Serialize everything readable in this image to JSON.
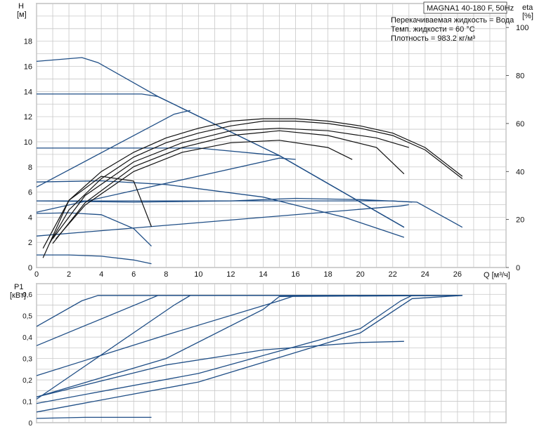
{
  "chart_data": [
    {
      "type": "line",
      "title": "MAGNA1 40-180 F, 50Hz",
      "info_lines": [
        "Перекачиваемая жидкость = Вода",
        "Темп. жидкости = 60 °C",
        "Плотность = 983.2 кг/м³"
      ],
      "ylabel": "H",
      "yunit": "[м]",
      "y2label": "eta",
      "y2unit": "[%]",
      "xlabel": "Q [м³/ч]",
      "xlim": [
        0,
        29
      ],
      "ylim": [
        0,
        21
      ],
      "y2lim": [
        0,
        110
      ],
      "grid": true,
      "x_ticks": [
        0,
        2,
        4,
        6,
        8,
        10,
        12,
        14,
        16,
        18,
        20,
        22,
        24,
        26
      ],
      "y_ticks": [
        0,
        2,
        4,
        6,
        8,
        10,
        12,
        14,
        16,
        18
      ],
      "y2_ticks": [
        0,
        20,
        40,
        60,
        80,
        100
      ],
      "series": [
        {
          "x": [
            0,
            2.8,
            3.8,
            7.5,
            15,
            22.7
          ],
          "y": [
            16.4,
            16.7,
            16.3,
            13.6,
            8.9,
            3.2
          ]
        },
        {
          "x": [
            0,
            6.5,
            7.5,
            15,
            22.7
          ],
          "y": [
            13.8,
            13.8,
            13.6,
            8.9,
            3.2
          ]
        },
        {
          "x": [
            0,
            10,
            15,
            22.7
          ],
          "y": [
            9.5,
            9.5,
            8.9,
            3.2
          ]
        },
        {
          "x": [
            0,
            8.5,
            9.5
          ],
          "y": [
            6.4,
            12.2,
            12.5
          ]
        },
        {
          "x": [
            0,
            15,
            16
          ],
          "y": [
            4.4,
            8.7,
            8.6
          ]
        },
        {
          "x": [
            0,
            22.5,
            23
          ],
          "y": [
            2.5,
            4.9,
            5.0
          ]
        },
        {
          "x": [
            0,
            12,
            22,
            23.2
          ],
          "y": [
            5.3,
            5.3,
            5.3,
            5.2
          ]
        },
        {
          "x": [
            0,
            4,
            8,
            14,
            19,
            22.7
          ],
          "y": [
            6.8,
            6.9,
            6.6,
            5.6,
            4.0,
            2.4
          ]
        },
        {
          "x": [
            0,
            2,
            4,
            6,
            7.1
          ],
          "y": [
            4.3,
            4.35,
            4.2,
            3.1,
            1.7
          ]
        },
        {
          "x": [
            0,
            2,
            4,
            6,
            7.1
          ],
          "y": [
            1.0,
            1.0,
            0.9,
            0.6,
            0.3
          ]
        },
        {
          "x": [
            0,
            6,
            12,
            16,
            20,
            23.5,
            26.3
          ],
          "y": [
            5.3,
            5.2,
            5.3,
            5.5,
            5.4,
            5.2,
            3.2
          ]
        }
      ],
      "efficiency_series": [
        {
          "x": [
            0.4,
            2,
            4,
            6,
            8,
            10,
            12,
            14,
            16,
            18,
            20,
            22,
            24,
            26.3
          ],
          "y": [
            8,
            28,
            40,
            48,
            54,
            58,
            61,
            62,
            62,
            61,
            59,
            56,
            50,
            38
          ]
        },
        {
          "x": [
            0.8,
            2,
            4,
            6,
            8,
            10,
            12,
            14,
            16,
            18,
            20,
            22,
            24,
            26.3
          ],
          "y": [
            10,
            24,
            37,
            46,
            52,
            56,
            59,
            61,
            61,
            60,
            58,
            55,
            49,
            37
          ]
        },
        {
          "x": [
            1,
            3,
            6,
            9,
            12,
            15,
            18,
            21,
            23
          ],
          "y": [
            12,
            30,
            44,
            52,
            57,
            58,
            57,
            54,
            50
          ]
        },
        {
          "x": [
            1,
            3,
            6,
            9,
            12,
            15,
            18,
            21,
            22.7
          ],
          "y": [
            10,
            27,
            42,
            50,
            55,
            57,
            55,
            50,
            39
          ]
        },
        {
          "x": [
            1.2,
            3,
            6,
            9,
            12,
            15,
            18,
            19.5
          ],
          "y": [
            12,
            26,
            40,
            48,
            52,
            53,
            50,
            45
          ]
        },
        {
          "x": [
            0.4,
            2,
            4,
            6,
            7.1
          ],
          "y": [
            4,
            28,
            38,
            36,
            17
          ]
        }
      ]
    },
    {
      "type": "line",
      "ylabel": "P1",
      "yunit": "[кВт]",
      "xlim": [
        0,
        29
      ],
      "ylim": [
        0,
        0.65
      ],
      "grid": true,
      "x_ticks": [
        0,
        2,
        4,
        6,
        8,
        10,
        12,
        14,
        16,
        18,
        20,
        22,
        24,
        26
      ],
      "y_ticks": [
        0,
        0.1,
        0.2,
        0.3,
        0.4,
        0.5,
        0.6
      ],
      "y_tick_labels": [
        "0",
        "0,1",
        "0,2",
        "0,3",
        "0,4",
        "0,5",
        "0,6"
      ],
      "series": [
        {
          "x": [
            0,
            2.8,
            3.8,
            26.3
          ],
          "y": [
            0.45,
            0.57,
            0.595,
            0.595
          ]
        },
        {
          "x": [
            0,
            7.5,
            26.3
          ],
          "y": [
            0.36,
            0.595,
            0.595
          ]
        },
        {
          "x": [
            0,
            8.5,
            9.5,
            26.3
          ],
          "y": [
            0.11,
            0.55,
            0.595,
            0.595
          ]
        },
        {
          "x": [
            0,
            8,
            15,
            16,
            26.3
          ],
          "y": [
            0.22,
            0.41,
            0.57,
            0.595,
            0.595
          ]
        },
        {
          "x": [
            0,
            8,
            14,
            15,
            26.3
          ],
          "y": [
            0.12,
            0.3,
            0.53,
            0.59,
            0.595
          ]
        },
        {
          "x": [
            0,
            10,
            20,
            22.5,
            23.2,
            26.3
          ],
          "y": [
            0.09,
            0.23,
            0.44,
            0.57,
            0.595,
            0.595
          ]
        },
        {
          "x": [
            0,
            10,
            20,
            23.2,
            26.3
          ],
          "y": [
            0.05,
            0.19,
            0.42,
            0.58,
            0.595
          ]
        },
        {
          "x": [
            0,
            8,
            14,
            20,
            22.7
          ],
          "y": [
            0.12,
            0.27,
            0.34,
            0.375,
            0.38
          ]
        },
        {
          "x": [
            0,
            3,
            7.1
          ],
          "y": [
            0.02,
            0.025,
            0.025
          ]
        }
      ]
    }
  ]
}
